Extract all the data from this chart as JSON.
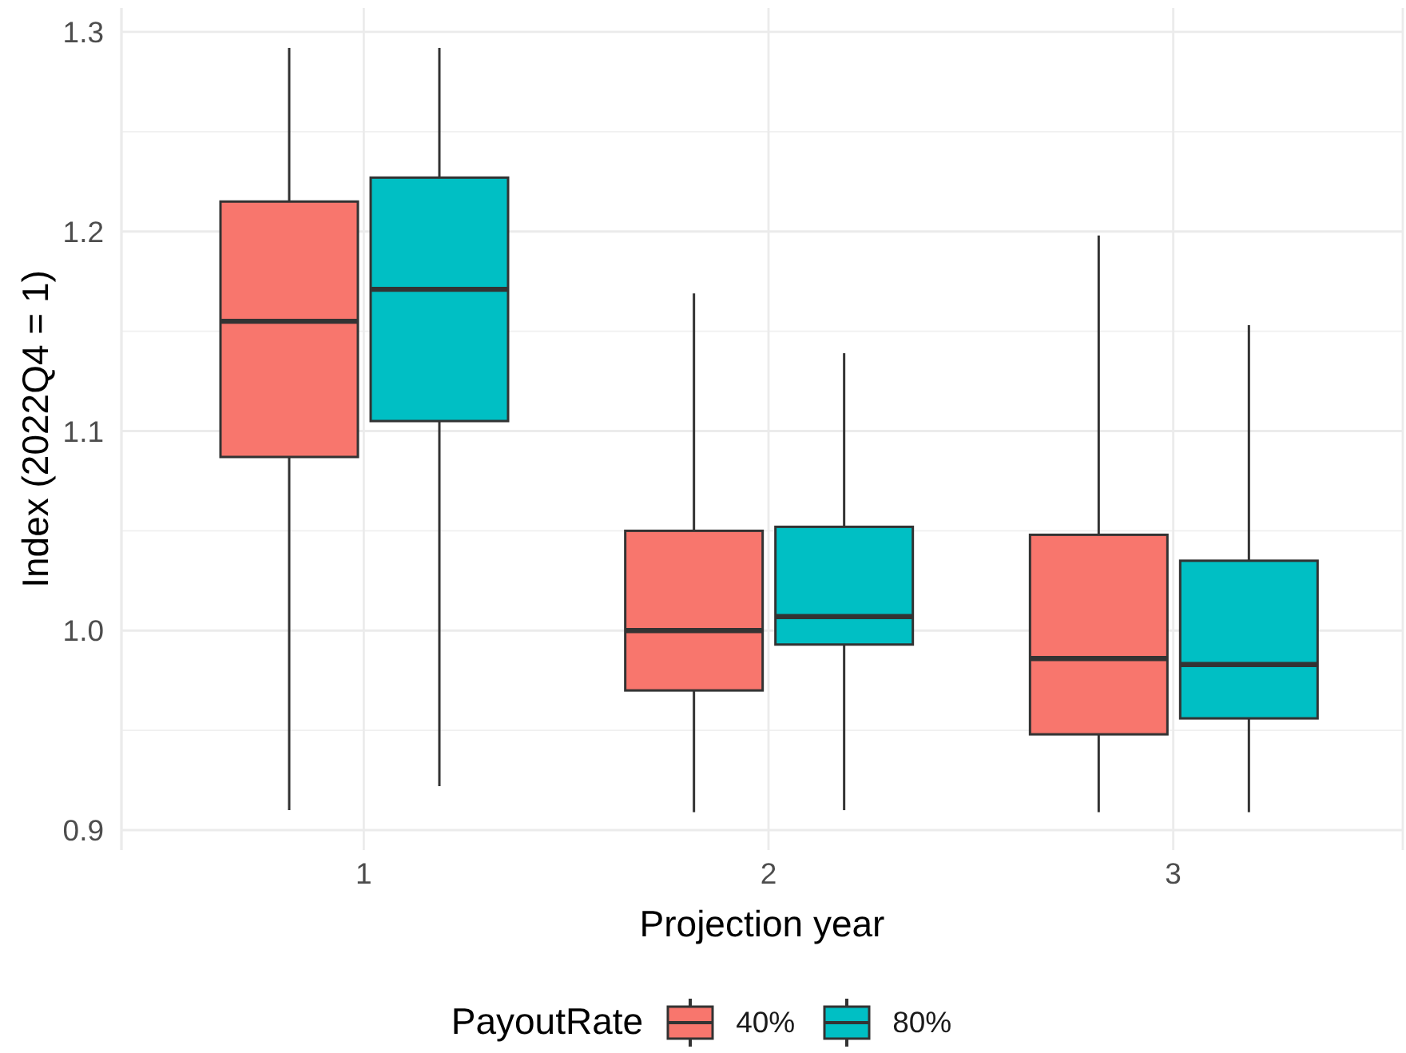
{
  "chart_data": {
    "type": "box",
    "xlabel": "Projection year",
    "ylabel": "Index (2022Q4 = 1)",
    "legend_title": "PayoutRate",
    "categories": [
      "1",
      "2",
      "3"
    ],
    "series": [
      {
        "name": "40%",
        "color": "#f8766d",
        "boxes": [
          {
            "low": 0.91,
            "q1": 1.087,
            "median": 1.155,
            "q3": 1.215,
            "high": 1.292
          },
          {
            "low": 0.909,
            "q1": 0.97,
            "median": 1.0,
            "q3": 1.05,
            "high": 1.169
          },
          {
            "low": 0.909,
            "q1": 0.948,
            "median": 0.986,
            "q3": 1.048,
            "high": 1.198
          }
        ]
      },
      {
        "name": "80%",
        "color": "#00bfc4",
        "boxes": [
          {
            "low": 0.922,
            "q1": 1.105,
            "median": 1.171,
            "q3": 1.227,
            "high": 1.292
          },
          {
            "low": 0.91,
            "q1": 0.993,
            "median": 1.007,
            "q3": 1.052,
            "high": 1.139
          },
          {
            "low": 0.909,
            "q1": 0.956,
            "median": 0.983,
            "q3": 1.035,
            "high": 1.153
          }
        ]
      }
    ],
    "ylim": [
      0.89,
      1.312
    ],
    "yticks": [
      0.9,
      {
        "value": 1,
        "label": "1.0"
      },
      1.1,
      1.2,
      1.3
    ],
    "grid": true,
    "legend": "bottom"
  }
}
